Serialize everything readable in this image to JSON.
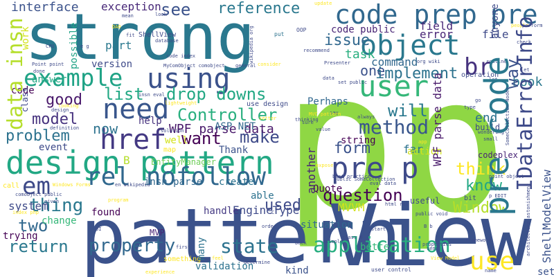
{
  "words": [
    {
      "text": "p",
      "color": "#8fd744"
    },
    {
      "text": "p",
      "color": "#8fd744"
    },
    {
      "text": "strong",
      "color": "#2a788e"
    },
    {
      "text": "pattern",
      "color": "#3b528b"
    },
    {
      "text": "View",
      "color": "#3b528b"
    },
    {
      "text": "design pattern",
      "color": "#22a884"
    },
    {
      "text": "pre code",
      "color": "#2a788e"
    },
    {
      "text": "code prep",
      "color": "#31688e"
    },
    {
      "text": "pre",
      "color": "#31688e"
    },
    {
      "text": "example",
      "color": "#20a386"
    },
    {
      "text": "using",
      "color": "#3b528b"
    },
    {
      "text": "object",
      "color": "#2a788e"
    },
    {
      "text": "user",
      "color": "#35b779"
    },
    {
      "text": "href",
      "color": "#443983"
    },
    {
      "text": "rel nofollow",
      "color": "#31688e"
    },
    {
      "text": "pre p",
      "color": "#3e4a89"
    },
    {
      "text": "need",
      "color": "#39568c"
    },
    {
      "text": "application",
      "color": "#28ae80"
    },
    {
      "text": "use",
      "color": "#fde725"
    },
    {
      "text": "IDataErrorInfo",
      "color": "#3e4a89"
    },
    {
      "text": "method",
      "color": "#39568c"
    },
    {
      "text": "em",
      "color": "#3e4a89"
    },
    {
      "text": "data insn",
      "color": "#b5de2b"
    },
    {
      "text": "interface",
      "color": "#3b528b"
    },
    {
      "text": "reference",
      "color": "#2a788e"
    },
    {
      "text": "question",
      "color": "#440154"
    },
    {
      "text": "property",
      "color": "#31688e"
    },
    {
      "text": "state",
      "color": "#2c728e"
    },
    {
      "text": "Controller",
      "color": "#29af7f"
    },
    {
      "text": "drop downs",
      "color": "#22a884"
    },
    {
      "text": "make",
      "color": "#3e4a89"
    },
    {
      "text": "want",
      "color": "#440154"
    },
    {
      "text": "list",
      "color": "#22a884"
    },
    {
      "text": "way",
      "color": "#3b528b"
    },
    {
      "text": "br",
      "color": "#46327e"
    },
    {
      "text": "Window",
      "color": "#b5de2b"
    },
    {
      "text": "return",
      "color": "#2a788e"
    },
    {
      "text": "issue",
      "color": "#31688e"
    },
    {
      "text": "one",
      "color": "#3b528b"
    },
    {
      "text": "implement",
      "color": "#2c728e"
    },
    {
      "text": "will",
      "color": "#2a788e"
    },
    {
      "text": "form",
      "color": "#3b528b"
    },
    {
      "text": "think",
      "color": "#fde725"
    },
    {
      "text": "know",
      "color": "#22a884"
    },
    {
      "text": "two",
      "color": "#31688e"
    },
    {
      "text": "thing",
      "color": "#2a788e"
    },
    {
      "text": "used",
      "color": "#3e4a89"
    },
    {
      "text": "problem",
      "color": "#2c728e"
    },
    {
      "text": "model",
      "color": "#46327e"
    },
    {
      "text": "now",
      "color": "#2c728e"
    },
    {
      "text": "good",
      "color": "#48186a"
    },
    {
      "text": "see",
      "color": "#3b528b"
    },
    {
      "text": "exception",
      "color": "#482878"
    },
    {
      "text": "anyone",
      "color": "#3e4a89"
    },
    {
      "text": "book",
      "color": "#2a788e"
    },
    {
      "text": "end",
      "color": "#2c728e"
    },
    {
      "text": "task",
      "color": "#29af7f"
    },
    {
      "text": "code public",
      "color": "#482475"
    },
    {
      "text": "field",
      "color": "#482878"
    },
    {
      "text": "error",
      "color": "#482475"
    },
    {
      "text": "file",
      "color": "#3e4a89"
    },
    {
      "text": "command",
      "color": "#31688e"
    },
    {
      "text": "part",
      "color": "#2a788e"
    },
    {
      "text": "version",
      "color": "#3e4a89"
    },
    {
      "text": "possible",
      "color": "#20a386"
    },
    {
      "text": "ShellModelView",
      "color": "#3b528b"
    },
    {
      "text": "WPF parse data",
      "color": "#48186a"
    },
    {
      "text": "well",
      "color": "#d2e21b"
    },
    {
      "text": "help",
      "color": "#46327e"
    },
    {
      "text": "Thank",
      "color": "#3b528b"
    },
    {
      "text": "ASP NET",
      "color": "#31688e"
    },
    {
      "text": "event",
      "color": "#3e4a89"
    },
    {
      "text": "Perhaps",
      "color": "#31688e"
    },
    {
      "text": "far",
      "color": "#2c728e"
    },
    {
      "text": "string",
      "color": "#440154"
    },
    {
      "text": "another",
      "color": "#482475"
    },
    {
      "text": "Quote",
      "color": "#440154"
    },
    {
      "text": "insn parse",
      "color": "#31688e"
    },
    {
      "text": "create",
      "color": "#2c728e"
    },
    {
      "text": "EngineType",
      "color": "#3e4a89"
    },
    {
      "text": "handle",
      "color": "#443983"
    },
    {
      "text": "found",
      "color": "#440154"
    },
    {
      "text": "situation",
      "color": "#31688e"
    },
    {
      "text": "MVVM",
      "color": "#d2e21b"
    },
    {
      "text": "change",
      "color": "#35b779"
    },
    {
      "text": "trying",
      "color": "#440154"
    },
    {
      "text": "validation",
      "color": "#2c728e"
    },
    {
      "text": "kind",
      "color": "#3b528b"
    },
    {
      "text": "able",
      "color": "#2c728e"
    },
    {
      "text": "useful",
      "color": "#3e4a89"
    },
    {
      "text": "better",
      "color": "#35b779"
    },
    {
      "text": "many",
      "color": "#2c728e"
    },
    {
      "text": "action",
      "color": "#d2e21b"
    },
    {
      "text": "system",
      "color": "#3e4a89"
    },
    {
      "text": "code",
      "color": "#440154"
    },
    {
      "text": "answer",
      "color": "#22a884"
    },
    {
      "text": "work",
      "color": "#d2e21b"
    },
    {
      "text": "class",
      "color": "#3e4a89"
    },
    {
      "text": "public class",
      "color": "#3e4a89"
    },
    {
      "text": "EntityManager",
      "color": "#6ece58"
    },
    {
      "text": "B",
      "color": "#b5de2b"
    },
    {
      "text": "MVP",
      "color": "#482475"
    },
    {
      "text": "ShellView",
      "color": "#3e4a89"
    },
    {
      "text": "codeplex",
      "color": "#482475"
    },
    {
      "text": "build",
      "color": "#3e4a89"
    },
    {
      "text": "set",
      "color": "#3b528b"
    },
    {
      "text": "put",
      "color": "#2c728e"
    },
    {
      "text": "OOP",
      "color": "#3e4a89"
    },
    {
      "text": "recommend",
      "color": "#3e4a89"
    },
    {
      "text": "routine",
      "color": "#3e4a89"
    },
    {
      "text": "operation",
      "color": "#3e4a89"
    },
    {
      "text": "org wiki",
      "color": "#3e4a89"
    },
    {
      "text": "look",
      "color": "#3e4a89"
    },
    {
      "text": "Presenter",
      "color": "#3e4a89"
    },
    {
      "text": "code index",
      "color": "#3e4a89"
    },
    {
      "text": "MyComObject comobject",
      "color": "#3e4a89"
    },
    {
      "text": "general",
      "color": "#3e4a89"
    },
    {
      "text": "consider",
      "color": "#fde725"
    },
    {
      "text": "wikipedia org",
      "color": "#3e4a89"
    },
    {
      "text": "Point point",
      "color": "#3e4a89"
    },
    {
      "text": "CPU",
      "color": "#3e4a89"
    },
    {
      "text": "DAO",
      "color": "#fde725"
    },
    {
      "text": "mean",
      "color": "#3e4a89"
    },
    {
      "text": "update",
      "color": "#fde725"
    },
    {
      "text": "perform",
      "color": "#3e4a89"
    },
    {
      "text": "check",
      "color": "#3e4a89"
    },
    {
      "text": "people",
      "color": "#fde725"
    },
    {
      "text": "database",
      "color": "#3e4a89"
    },
    {
      "text": "user control",
      "color": "#3e4a89"
    },
    {
      "text": "View Model",
      "color": "#fde725"
    },
    {
      "text": "properties",
      "color": "#3e4a89"
    },
    {
      "text": "name",
      "color": "#3e4a89"
    },
    {
      "text": "call",
      "color": "#fde725"
    },
    {
      "text": "Windows Forms",
      "color": "#fde725"
    },
    {
      "text": "en wikipedia",
      "color": "#3e4a89"
    },
    {
      "text": "comobject public",
      "color": "#3e4a89"
    },
    {
      "text": "given",
      "color": "#3e4a89"
    },
    {
      "text": "index php",
      "color": "#fde725"
    },
    {
      "text": "first",
      "color": "#3e4a89"
    },
    {
      "text": "determine",
      "color": "#3e4a89"
    },
    {
      "text": "feel",
      "color": "#fde725"
    },
    {
      "text": "experience",
      "color": "#fde725"
    },
    {
      "text": "send",
      "color": "#3e4a89"
    },
    {
      "text": "framework",
      "color": "#3e4a89"
    },
    {
      "text": "architecture astonishment",
      "color": "#3e4a89"
    },
    {
      "text": "class B",
      "color": "#3e4a89"
    },
    {
      "text": "start",
      "color": "#3e4a89"
    },
    {
      "text": "back",
      "color": "#3e4a89"
    },
    {
      "text": "order",
      "color": "#3e4a89"
    },
    {
      "text": "simple",
      "color": "#3e4a89"
    },
    {
      "text": "B b",
      "color": "#3e4a89"
    },
    {
      "text": "public void",
      "color": "#3e4a89"
    },
    {
      "text": "bit",
      "color": "#3e4a89"
    },
    {
      "text": "p EDIT",
      "color": "#3e4a89"
    },
    {
      "text": "html rel",
      "color": "#3e4a89"
    },
    {
      "text": "eval data",
      "color": "#3e4a89"
    },
    {
      "text": "public SomeCollection",
      "color": "#3e4a89"
    },
    {
      "text": "point object",
      "color": "#3e4a89"
    },
    {
      "text": "best practice",
      "color": "#3e4a89"
    },
    {
      "text": "app",
      "color": "#fde725"
    },
    {
      "text": "expose",
      "color": "#fde725"
    },
    {
      "text": "SomeCollection Nodes",
      "color": "#3e4a89"
    },
    {
      "text": "wondering",
      "color": "#3e4a89"
    },
    {
      "text": "small",
      "color": "#3e4a89"
    },
    {
      "text": "go",
      "color": "#3e4a89"
    },
    {
      "text": "type",
      "color": "#3e4a89"
    },
    {
      "text": "let",
      "color": "#3e4a89"
    },
    {
      "text": "looking",
      "color": "#fde725"
    },
    {
      "text": "definition",
      "color": "#3e4a89"
    },
    {
      "text": "thinking",
      "color": "#3e4a89"
    },
    {
      "text": "sure",
      "color": "#3e4a89"
    },
    {
      "text": "value",
      "color": "#3e4a89"
    },
    {
      "text": "always",
      "color": "#3e4a89"
    },
    {
      "text": "say",
      "color": "#3e4a89"
    },
    {
      "text": "MVC pattern",
      "color": "#fde725"
    },
    {
      "text": "set public",
      "color": "#3e4a89"
    },
    {
      "text": "data",
      "color": "#3e4a89"
    },
    {
      "text": "setter",
      "color": "#fde725"
    },
    {
      "text": "lightweight",
      "color": "#fde725"
    },
    {
      "text": "use design",
      "color": "#3e4a89"
    },
    {
      "text": "insn eval",
      "color": "#3e4a89"
    },
    {
      "text": "design",
      "color": "#3e4a89"
    },
    {
      "text": "solution",
      "color": "#3e4a89"
    },
    {
      "text": "map",
      "color": "#fde725"
    },
    {
      "text": "something",
      "color": "#fde725"
    },
    {
      "text": "program",
      "color": "#fde725"
    },
    {
      "text": "done",
      "color": "#3e4a89"
    },
    {
      "text": "fit",
      "color": "#3e4a89"
    },
    {
      "text": "e g",
      "color": "#3e4a89"
    },
    {
      "text": "UI",
      "color": "#3e4a89"
    },
    {
      "text": "C",
      "color": "#3e4a89"
    },
    {
      "text": "definition object",
      "color": "#fde725"
    }
  ]
}
